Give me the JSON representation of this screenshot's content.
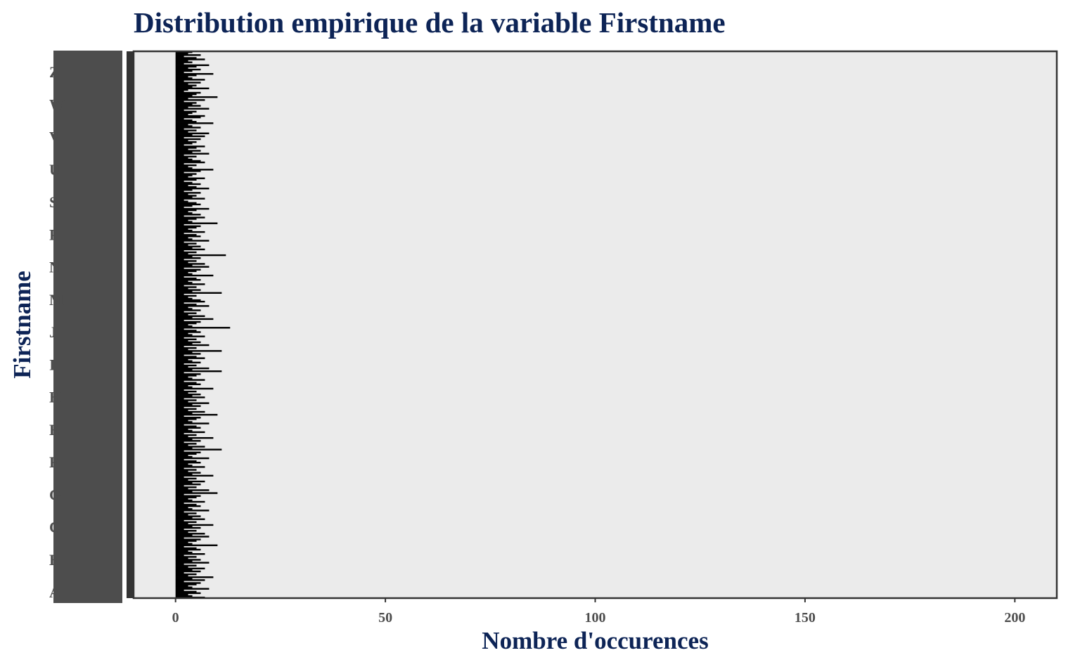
{
  "chart_data": {
    "type": "bar",
    "orientation": "horizontal",
    "title": "Distribution empirique de la variable Firstname",
    "xlabel": "Nombre d'occurences",
    "ylabel": "Firstname",
    "xlim": [
      -10,
      210
    ],
    "x_ticks": [
      0,
      50,
      100,
      150,
      200
    ],
    "x_tick_labels": [
      "0",
      "50",
      "100",
      "150",
      "200"
    ],
    "grid": false,
    "legend": "none",
    "bar_color": "#000000",
    "panel_background": "#ebebeb",
    "y_category_label_initials": [
      "A",
      "B",
      "C",
      "G",
      "F",
      "E",
      "H",
      "I",
      "J",
      "M",
      "N",
      "P",
      "S",
      "U",
      "V",
      "W",
      "Z"
    ],
    "values_note": "one bar per distinct first name, most counts between 1 and 12",
    "values": [
      4,
      3,
      6,
      2,
      5,
      7,
      3,
      4,
      2,
      8,
      5,
      3,
      6,
      4,
      2,
      9,
      5,
      3,
      4,
      7,
      2,
      6,
      3,
      5,
      4,
      8,
      3,
      2,
      6,
      5,
      4,
      10,
      3,
      7,
      2,
      5,
      4,
      6,
      3,
      8,
      2,
      5,
      4,
      3,
      7,
      6,
      2,
      4,
      5,
      9,
      3,
      4,
      6,
      2,
      5,
      3,
      8,
      4,
      7,
      2,
      6,
      3,
      5,
      4,
      2,
      7,
      5,
      3,
      6,
      4,
      8,
      2,
      5,
      3,
      4,
      6,
      7,
      2,
      5,
      3,
      4,
      9,
      6,
      2,
      5,
      4,
      3,
      7,
      5,
      2,
      4,
      6,
      3,
      5,
      8,
      4,
      2,
      6,
      3,
      5,
      4,
      7,
      2,
      3,
      5,
      6,
      4,
      2,
      8,
      5,
      3,
      4,
      6,
      2,
      7,
      5,
      3,
      4,
      10,
      2,
      6,
      5,
      3,
      4,
      7,
      2,
      5,
      6,
      3,
      4,
      8,
      2,
      5,
      3,
      6,
      4,
      7,
      2,
      5,
      3,
      12,
      4,
      6,
      2,
      5,
      3,
      7,
      4,
      8,
      2,
      6,
      5,
      3,
      4,
      9,
      2,
      5,
      6,
      3,
      4,
      7,
      2,
      5,
      3,
      6,
      4,
      11,
      2,
      5,
      3,
      4,
      6,
      7,
      2,
      5,
      8,
      3,
      4,
      6,
      2,
      5,
      3,
      7,
      4,
      9,
      2,
      6,
      5,
      3,
      4,
      13,
      2,
      5,
      6,
      3,
      4,
      7,
      2,
      5,
      3,
      6,
      4,
      8,
      2,
      5,
      3,
      11,
      4,
      6,
      2,
      5,
      7,
      3,
      4,
      6,
      2,
      5,
      3,
      8,
      4,
      11,
      2,
      6,
      5,
      3,
      4,
      7,
      2,
      5,
      6,
      3,
      4,
      9,
      2,
      5,
      3,
      6,
      4,
      7,
      2,
      5,
      3,
      8,
      4,
      6,
      2,
      5,
      3,
      7,
      4,
      10,
      2,
      6,
      5,
      3,
      4,
      8,
      2,
      5,
      6,
      3,
      4,
      7,
      2,
      5,
      3,
      9,
      4,
      6,
      2,
      5,
      3,
      7,
      4,
      11,
      2,
      6,
      5,
      3,
      4,
      8,
      2,
      5,
      6,
      3,
      4,
      7,
      2,
      5,
      3,
      6,
      4,
      9,
      2,
      5,
      3,
      7,
      4,
      6,
      2,
      5,
      3,
      8,
      4,
      10,
      2,
      6,
      5,
      3,
      4,
      7,
      2,
      5,
      6,
      3,
      4,
      8,
      2,
      5,
      3,
      6,
      4,
      7,
      2,
      5,
      3,
      9,
      4,
      6,
      2,
      5,
      3,
      7,
      4,
      8,
      2,
      6,
      5,
      3,
      4,
      10,
      2,
      5,
      6,
      3,
      4,
      7,
      2,
      5,
      3,
      6,
      4,
      8,
      2,
      5,
      3,
      7,
      4,
      6,
      2,
      5,
      3,
      9,
      4,
      7,
      2,
      6,
      5,
      3,
      4,
      8,
      2,
      5,
      6,
      3,
      4,
      7
    ]
  }
}
